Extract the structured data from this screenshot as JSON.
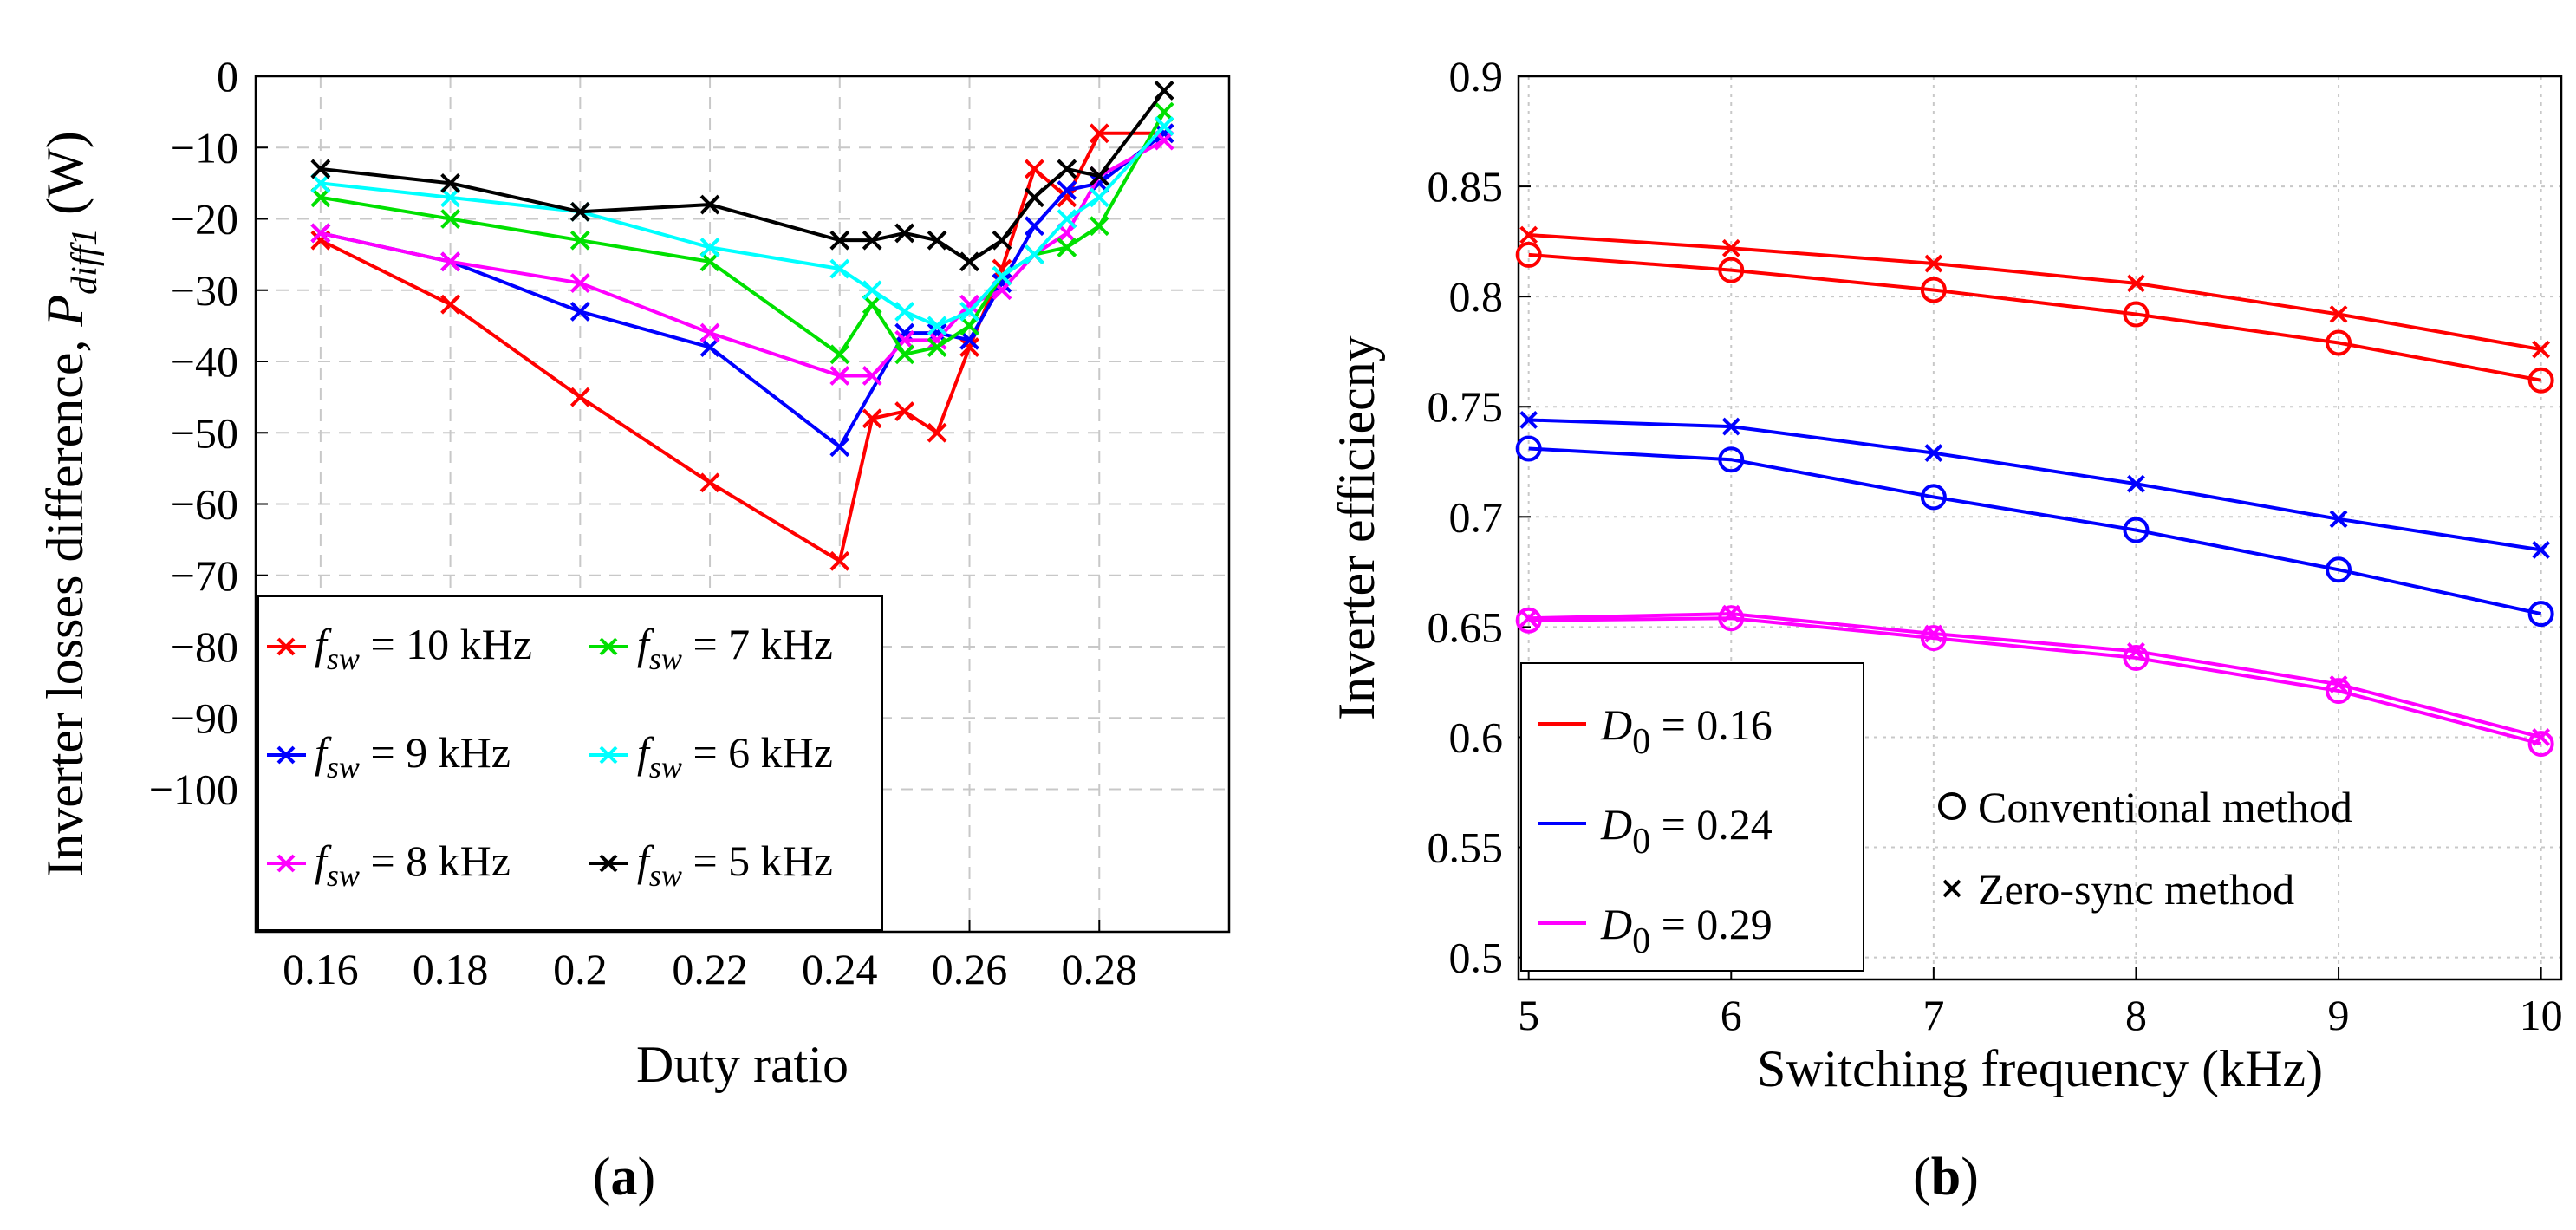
{
  "chart_data": [
    {
      "type": "line",
      "panel_label": "(a)",
      "panel_letter": "a",
      "xlabel": "Duty ratio",
      "ylabel": "Inverter losses difference, ",
      "ylabel_symbol": "P",
      "ylabel_subscript": "diff1",
      "ylabel_unit": " (W)",
      "xlim": [
        0.15,
        0.3
      ],
      "ylim": [
        -120,
        0
      ],
      "xticks": [
        0.16,
        0.18,
        0.2,
        0.22,
        0.24,
        0.26,
        0.28
      ],
      "xtick_labels": [
        "0.16",
        "0.18",
        "0.2",
        "0.22",
        "0.24",
        "0.26",
        "0.28"
      ],
      "yticks": [
        0,
        -10,
        -20,
        -30,
        -40,
        -50,
        -60,
        -70,
        -80,
        -90,
        -100
      ],
      "ytick_labels": [
        "0",
        "-10",
        "-20",
        "-30",
        "-40",
        "-50",
        "-60",
        "-70",
        "-80",
        "-90",
        "-100"
      ],
      "grid": true,
      "legend_position": "lower-left",
      "legend_symbol": "f",
      "legend_subscript": "sw",
      "series": [
        {
          "name": "= 10 kHz",
          "color": "#ff0000",
          "x": [
            0.16,
            0.18,
            0.2,
            0.22,
            0.24,
            0.245,
            0.25,
            0.255,
            0.26,
            0.265,
            0.27,
            0.275,
            0.28,
            0.29
          ],
          "y": [
            -23,
            -32,
            -45,
            -57,
            -68,
            -48,
            -47,
            -50,
            -38,
            -27,
            -13,
            -17,
            -8,
            -8
          ]
        },
        {
          "name": "= 9 kHz",
          "color": "#0000ff",
          "x": [
            0.16,
            0.18,
            0.2,
            0.22,
            0.24,
            0.25,
            0.255,
            0.26,
            0.265,
            0.27,
            0.275,
            0.28,
            0.29
          ],
          "y": [
            -22,
            -26,
            -33,
            -38,
            -52,
            -36,
            -36,
            -37,
            -29,
            -21,
            -16,
            -15,
            -8
          ]
        },
        {
          "name": "= 8 kHz",
          "color": "#ff00ff",
          "x": [
            0.16,
            0.18,
            0.2,
            0.22,
            0.24,
            0.245,
            0.25,
            0.255,
            0.26,
            0.265,
            0.27,
            0.275,
            0.28,
            0.29
          ],
          "y": [
            -22,
            -26,
            -29,
            -36,
            -42,
            -42,
            -37,
            -37,
            -32,
            -30,
            -25,
            -22,
            -14,
            -9
          ]
        },
        {
          "name": "= 7 kHz",
          "color": "#00e000",
          "x": [
            0.16,
            0.18,
            0.2,
            0.22,
            0.24,
            0.245,
            0.25,
            0.255,
            0.26,
            0.265,
            0.27,
            0.275,
            0.28,
            0.29
          ],
          "y": [
            -17,
            -20,
            -23,
            -26,
            -39,
            -32,
            -39,
            -38,
            -35,
            -28,
            -25,
            -24,
            -21,
            -5
          ]
        },
        {
          "name": "= 6 kHz",
          "color": "#00ffff",
          "x": [
            0.16,
            0.18,
            0.2,
            0.22,
            0.24,
            0.245,
            0.25,
            0.255,
            0.26,
            0.265,
            0.27,
            0.275,
            0.28,
            0.29
          ],
          "y": [
            -15,
            -17,
            -19,
            -24,
            -27,
            -30,
            -33,
            -35,
            -33,
            -28,
            -25,
            -20,
            -17,
            -7
          ]
        },
        {
          "name": "= 5 kHz",
          "color": "#000000",
          "x": [
            0.16,
            0.18,
            0.2,
            0.22,
            0.24,
            0.245,
            0.25,
            0.255,
            0.26,
            0.265,
            0.27,
            0.275,
            0.28,
            0.29
          ],
          "y": [
            -13,
            -15,
            -19,
            -18,
            -23,
            -23,
            -22,
            -23,
            -26,
            -23,
            -17,
            -13,
            -14,
            -2
          ]
        }
      ]
    },
    {
      "type": "line",
      "panel_label": "(b)",
      "panel_letter": "b",
      "xlabel": "Switching frequency (kHz)",
      "ylabel": "Inverter efficiecny",
      "xlim": [
        4.95,
        10.1
      ],
      "ylim": [
        0.49,
        0.9
      ],
      "xticks": [
        5,
        6,
        7,
        8,
        9,
        10
      ],
      "xtick_labels": [
        "5",
        "6",
        "7",
        "8",
        "9",
        "10"
      ],
      "yticks": [
        0.5,
        0.55,
        0.6,
        0.65,
        0.7,
        0.75,
        0.8,
        0.85,
        0.9
      ],
      "ytick_labels": [
        "0.5",
        "0.55",
        "0.6",
        "0.65",
        "0.7",
        "0.75",
        "0.8",
        "0.85",
        "0.9"
      ],
      "grid": true,
      "legend_position": "lower-left",
      "legend_symbol": "D",
      "legend_subscript": "0",
      "marker_legend": [
        {
          "marker": "circle",
          "label": "Conventional method"
        },
        {
          "marker": "cross",
          "label": "Zero-sync method"
        }
      ],
      "x": [
        5,
        6,
        7,
        8,
        9,
        10
      ],
      "series": [
        {
          "name": "= 0.16",
          "color": "#ff0000",
          "method": "Conventional method",
          "marker": "circle",
          "y": [
            0.819,
            0.812,
            0.803,
            0.792,
            0.779,
            0.762
          ]
        },
        {
          "name": "= 0.16",
          "color": "#ff0000",
          "method": "Zero-sync method",
          "marker": "cross",
          "y": [
            0.828,
            0.822,
            0.815,
            0.806,
            0.792,
            0.776
          ]
        },
        {
          "name": "= 0.24",
          "color": "#0000ff",
          "method": "Conventional method",
          "marker": "circle",
          "y": [
            0.731,
            0.726,
            0.709,
            0.694,
            0.676,
            0.656
          ]
        },
        {
          "name": "= 0.24",
          "color": "#0000ff",
          "method": "Zero-sync method",
          "marker": "cross",
          "y": [
            0.744,
            0.741,
            0.729,
            0.715,
            0.699,
            0.685
          ]
        },
        {
          "name": "= 0.29",
          "color": "#ff00ff",
          "method": "Conventional method",
          "marker": "circle",
          "y": [
            0.653,
            0.654,
            0.645,
            0.636,
            0.621,
            0.597
          ]
        },
        {
          "name": "= 0.29",
          "color": "#ff00ff",
          "method": "Zero-sync method",
          "marker": "cross",
          "y": [
            0.654,
            0.656,
            0.647,
            0.639,
            0.624,
            0.6
          ]
        }
      ]
    }
  ]
}
